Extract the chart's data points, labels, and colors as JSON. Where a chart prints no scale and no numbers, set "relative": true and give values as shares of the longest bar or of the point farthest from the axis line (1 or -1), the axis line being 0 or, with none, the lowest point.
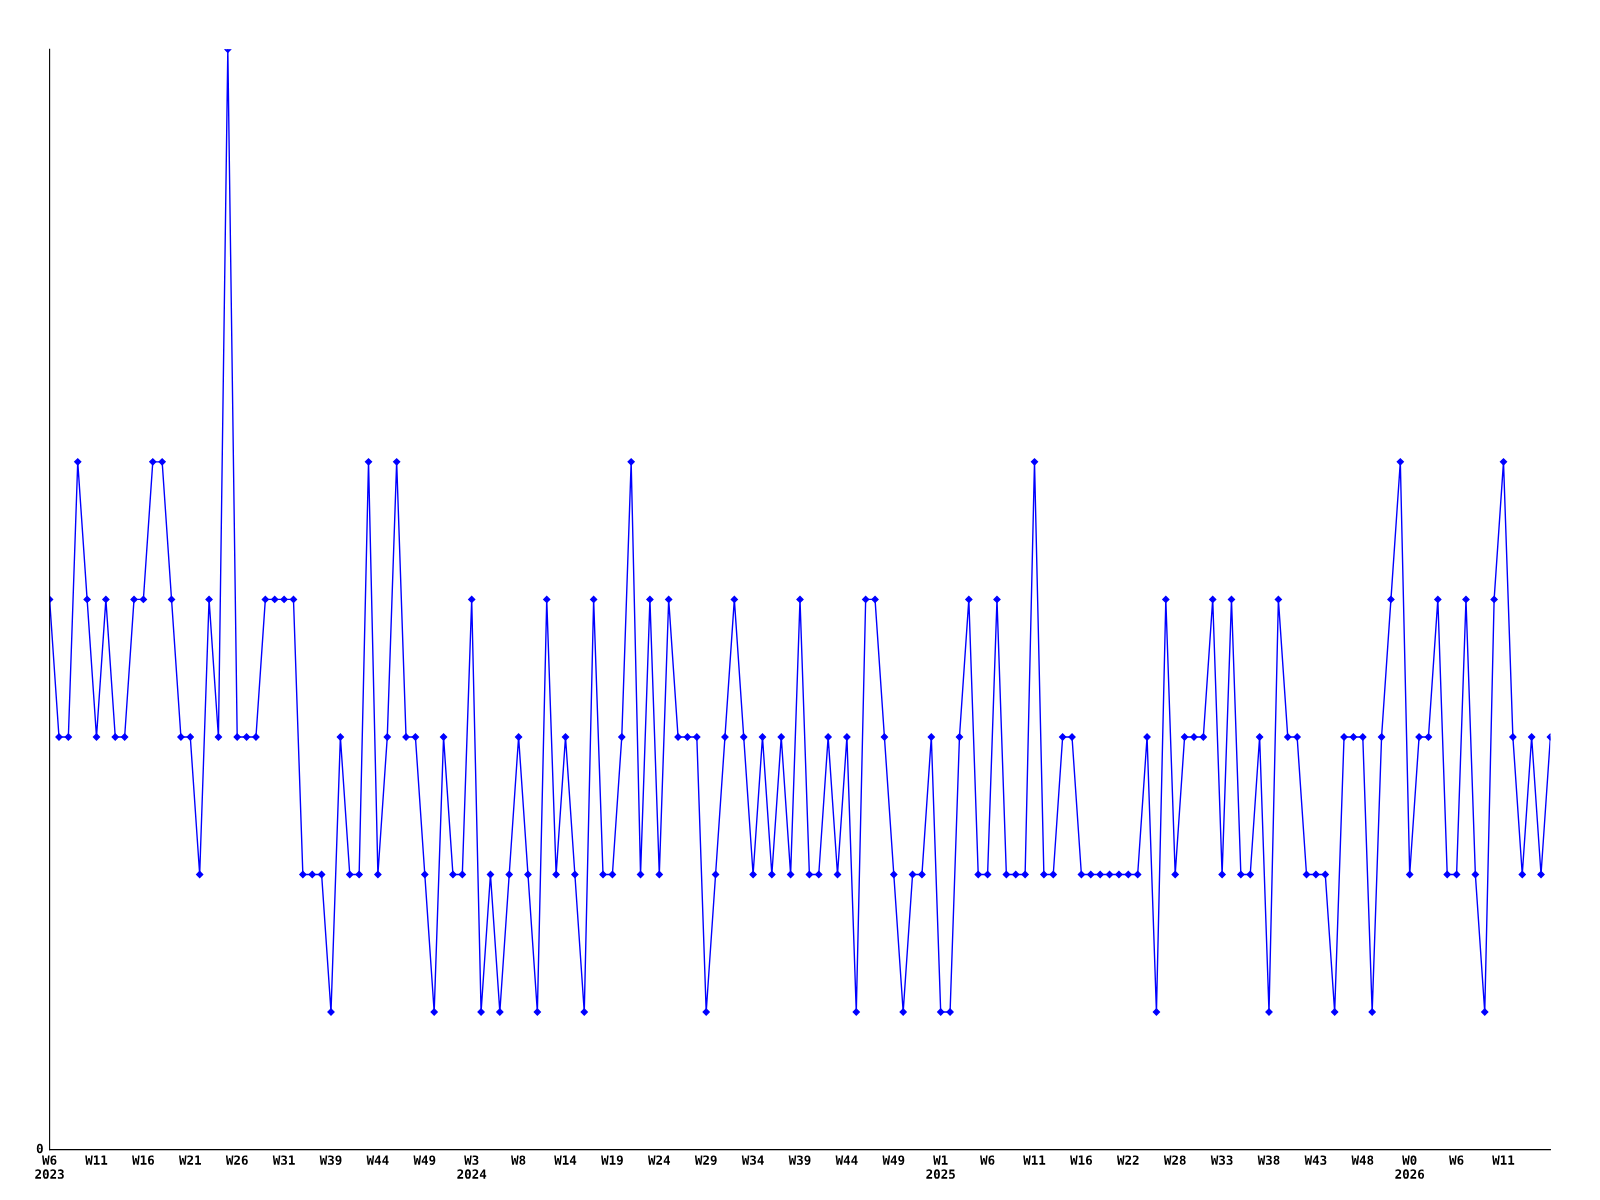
{
  "chart_data": {
    "type": "line",
    "relative": true,
    "color": "#0000ff",
    "marker": "diamond",
    "line_style": "solid",
    "grid": false,
    "legend": false,
    "annotations": [
      "0"
    ],
    "categories": [
      "W6\n2023",
      null,
      null,
      null,
      null,
      "W11",
      null,
      null,
      null,
      null,
      "W16",
      null,
      null,
      null,
      null,
      "W21",
      null,
      null,
      null,
      null,
      "W26",
      null,
      null,
      null,
      null,
      "W31",
      null,
      null,
      null,
      null,
      "W39",
      null,
      null,
      null,
      null,
      "W44",
      null,
      null,
      null,
      null,
      "W49",
      null,
      null,
      null,
      null,
      "W3\n2024",
      null,
      null,
      null,
      null,
      "W8",
      null,
      null,
      null,
      null,
      "W14",
      null,
      null,
      null,
      null,
      "W19",
      null,
      null,
      null,
      null,
      "W24",
      null,
      null,
      null,
      null,
      "W29",
      null,
      null,
      null,
      null,
      "W34",
      null,
      null,
      null,
      null,
      "W39",
      null,
      null,
      null,
      null,
      "W44",
      null,
      null,
      null,
      null,
      "W49",
      null,
      null,
      null,
      null,
      "W1\n2025",
      null,
      null,
      null,
      null,
      "W6",
      null,
      null,
      null,
      null,
      "W11",
      null,
      null,
      null,
      null,
      "W16",
      null,
      null,
      null,
      null,
      "W22",
      null,
      null,
      null,
      null,
      "W28",
      null,
      null,
      null,
      null,
      "W33",
      null,
      null,
      null,
      null,
      "W38",
      null,
      null,
      null,
      null,
      "W43",
      null,
      null,
      null,
      null,
      "W48",
      null,
      null,
      null,
      null,
      "W0\n2026",
      null,
      null,
      null,
      null,
      "W6",
      null,
      null,
      null,
      null,
      "W11",
      null,
      null,
      null,
      null,
      null
    ],
    "values": [
      0.5,
      0.375,
      0.375,
      0.625,
      0.5,
      0.375,
      0.5,
      0.375,
      0.375,
      0.5,
      0.5,
      0.625,
      0.625,
      0.5,
      0.375,
      0.375,
      0.25,
      0.5,
      0.375,
      1,
      0.375,
      0.375,
      0.375,
      0.5,
      0.5,
      0.5,
      0.5,
      0.25,
      0.25,
      0.25,
      0.125,
      0.375,
      0.25,
      0.25,
      0.625,
      0.25,
      0.375,
      0.625,
      0.375,
      0.375,
      0.25,
      0.125,
      0.375,
      0.25,
      0.25,
      0.5,
      0.125,
      0.25,
      0.125,
      0.25,
      0.375,
      0.25,
      0.125,
      0.5,
      0.25,
      0.375,
      0.25,
      0.125,
      0.5,
      0.25,
      0.25,
      0.375,
      0.625,
      0.25,
      0.5,
      0.25,
      0.5,
      0.375,
      0.375,
      0.375,
      0.125,
      0.25,
      0.375,
      0.5,
      0.375,
      0.25,
      0.375,
      0.25,
      0.375,
      0.25,
      0.5,
      0.25,
      0.25,
      0.375,
      0.25,
      0.375,
      0.125,
      0.5,
      0.5,
      0.375,
      0.25,
      0.125,
      0.25,
      0.25,
      0.375,
      0.125,
      0.125,
      0.375,
      0.5,
      0.25,
      0.25,
      0.5,
      0.25,
      0.25,
      0.25,
      0.625,
      0.25,
      0.25,
      0.375,
      0.375,
      0.25,
      0.25,
      0.25,
      0.25,
      0.25,
      0.25,
      0.25,
      0.375,
      0.125,
      0.5,
      0.25,
      0.375,
      0.375,
      0.375,
      0.5,
      0.25,
      0.5,
      0.25,
      0.25,
      0.375,
      0.125,
      0.5,
      0.375,
      0.375,
      0.25,
      0.25,
      0.25,
      0.125,
      0.375,
      0.375,
      0.375,
      0.125,
      0.375,
      0.5,
      0.625,
      0.25,
      0.375,
      0.375,
      0.5,
      0.25,
      0.25,
      0.5,
      0.25,
      0.125,
      0.5,
      0.625,
      0.375,
      0.25,
      0.375,
      0.25,
      0.375
    ]
  }
}
